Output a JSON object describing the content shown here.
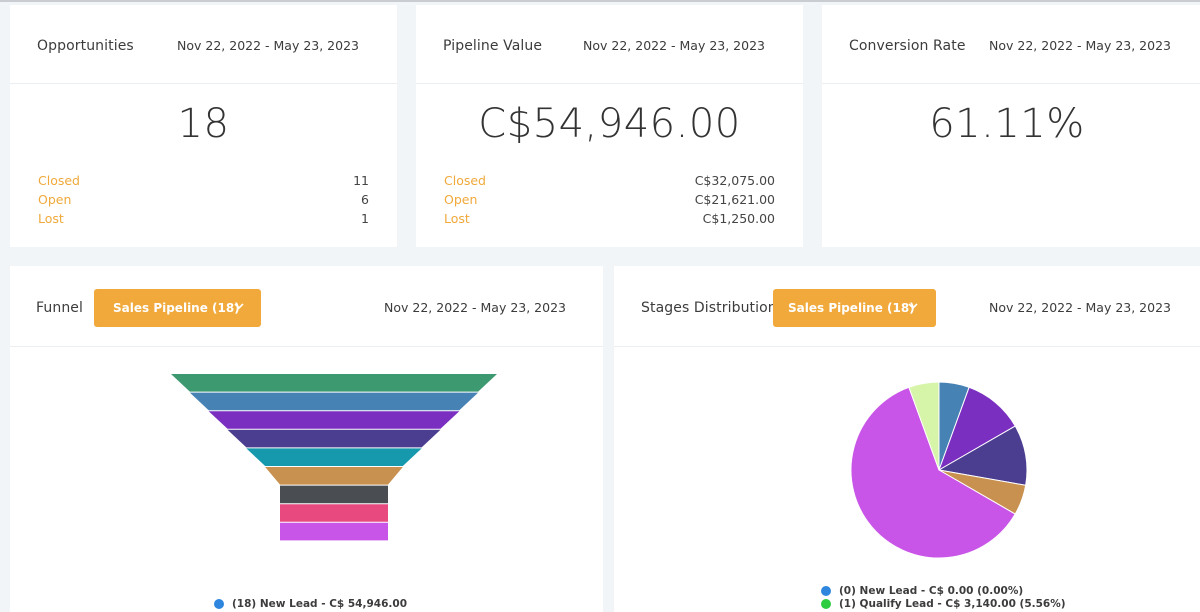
{
  "cards": {
    "opportunities": {
      "title": "Opportunities",
      "date_range": "Nov 22, 2022 - May 23, 2023",
      "value": "18",
      "rows": [
        {
          "label": "Closed",
          "value": "11"
        },
        {
          "label": "Open",
          "value": "6"
        },
        {
          "label": "Lost",
          "value": "1"
        }
      ]
    },
    "pipeline_value": {
      "title": "Pipeline Value",
      "date_range": "Nov 22, 2022 - May 23, 2023",
      "value": "C$54,946.00",
      "rows": [
        {
          "label": "Closed",
          "value": "C$32,075.00"
        },
        {
          "label": "Open",
          "value": "C$21,621.00"
        },
        {
          "label": "Lost",
          "value": "C$1,250.00"
        }
      ]
    },
    "conversion_rate": {
      "title": "Conversion Rate",
      "date_range": "Nov 22, 2022 - May 23, 2023",
      "value": "61.11%"
    }
  },
  "funnel": {
    "title": "Funnel",
    "dropdown": "Sales Pipeline (18)",
    "date_range": "Nov 22, 2022 - May 23, 2023",
    "stage_colors": [
      "#3d9970",
      "#4682b4",
      "#7a2fc0",
      "#4b3d8f",
      "#1699ad",
      "#c9914f",
      "#4a4d52",
      "#e84a7f",
      "#c955e8"
    ],
    "legend": [
      {
        "color": "#2e86de",
        "label": "(18) New Lead - C$ 54,946.00"
      }
    ]
  },
  "stages": {
    "title": "Stages Distribution",
    "dropdown": "Sales Pipeline (18)",
    "date_range": "Nov 22, 2022 - May 23, 2023",
    "slices": [
      {
        "color": "#4682b4",
        "pct": 5.56
      },
      {
        "color": "#7a2fc0",
        "pct": 11.11
      },
      {
        "color": "#4b3d8f",
        "pct": 11.11
      },
      {
        "color": "#c9914f",
        "pct": 5.56
      },
      {
        "color": "#c955e8",
        "pct": 61.11
      },
      {
        "color": "#d7f5a9",
        "pct": 5.55
      }
    ],
    "legend": [
      {
        "color": "#2e86de",
        "label": "(0) New Lead - C$ 0.00 (0.00%)"
      },
      {
        "color": "#2ecc40",
        "label": "(1) Qualify Lead - C$ 3,140.00 (5.56%)"
      }
    ]
  }
}
